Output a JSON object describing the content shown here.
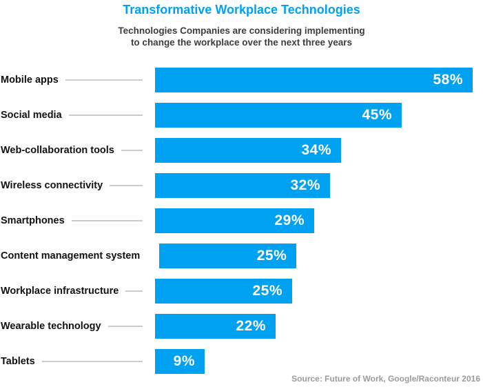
{
  "header": {
    "title": "Transformative Workplace Technologies",
    "subtitle_line1": "Technologies Companies are considering implementing",
    "subtitle_line2": "to change the workplace over the next three years"
  },
  "footer": {
    "source": "Source: Future of Work, Google/Raconteur 2016"
  },
  "colors": {
    "bar": "#00A1F1",
    "title": "#00A1F1",
    "subtitle": "#3D3D3D",
    "label": "#111111",
    "leader": "#CCCCCC",
    "value": "#FFFFFF",
    "source": "#9B9B9B"
  },
  "chart_data": {
    "type": "bar",
    "orientation": "horizontal",
    "title": "Transformative Workplace Technologies",
    "subtitle": "Technologies Companies are considering implementing to change the workplace over the next three years",
    "categories": [
      "Mobile apps",
      "Social media",
      "Web-collaboration tools",
      "Wireless connectivity",
      "Smartphones",
      "Content management system",
      "Workplace infrastructure",
      "Wearable technology",
      "Tablets"
    ],
    "values": [
      58,
      45,
      34,
      32,
      29,
      25,
      25,
      22,
      9
    ],
    "unit": "%",
    "value_labels": [
      "58%",
      "45%",
      "34%",
      "32%",
      "29%",
      "25%",
      "25%",
      "22%",
      "9%"
    ],
    "xlim": [
      0,
      58
    ],
    "grid": false,
    "legend": false,
    "source": "Source: Future of Work, Google/Raconteur 2016"
  }
}
